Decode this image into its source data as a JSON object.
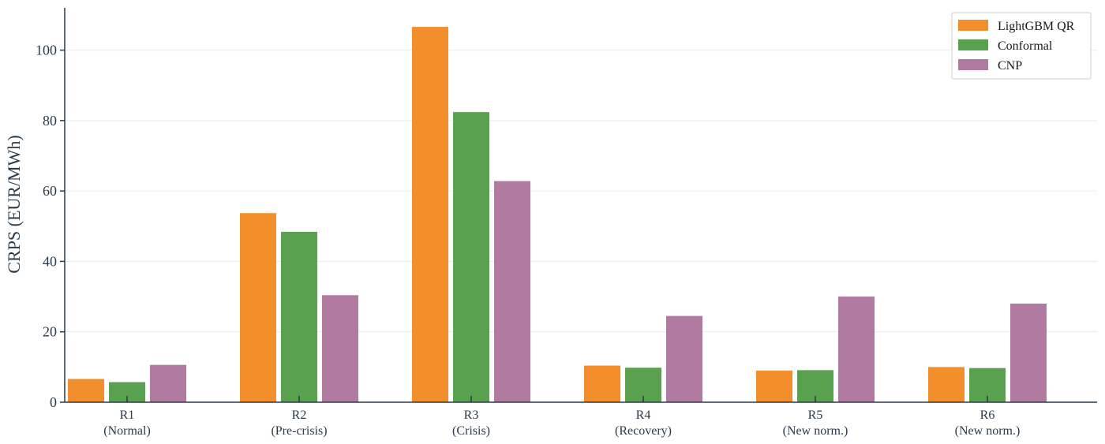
{
  "chart_data": {
    "type": "bar",
    "title": "",
    "xlabel": "",
    "ylabel": "CRPS (EUR/MWh)",
    "categories": [
      [
        "R1",
        "(Normal)"
      ],
      [
        "R2",
        "(Pre-crisis)"
      ],
      [
        "R3",
        "(Crisis)"
      ],
      [
        "R4",
        "(Recovery)"
      ],
      [
        "R5",
        "(New norm.)"
      ],
      [
        "R6",
        "(New norm.)"
      ]
    ],
    "series": [
      {
        "name": "LightGBM QR",
        "color": "#f28e2b",
        "values": [
          6.6,
          53.7,
          106.6,
          10.4,
          9.0,
          10.0
        ]
      },
      {
        "name": "Conformal",
        "color": "#59a14f",
        "values": [
          5.7,
          48.4,
          82.4,
          9.8,
          9.1,
          9.7
        ]
      },
      {
        "name": "CNP",
        "color": "#b07aa1",
        "values": [
          10.6,
          30.4,
          62.8,
          24.5,
          30.0,
          28.0
        ]
      }
    ],
    "ylim": [
      0,
      112
    ],
    "yticks": [
      0,
      20,
      40,
      60,
      80,
      100
    ],
    "grid": true,
    "legend_position": "top-right"
  }
}
